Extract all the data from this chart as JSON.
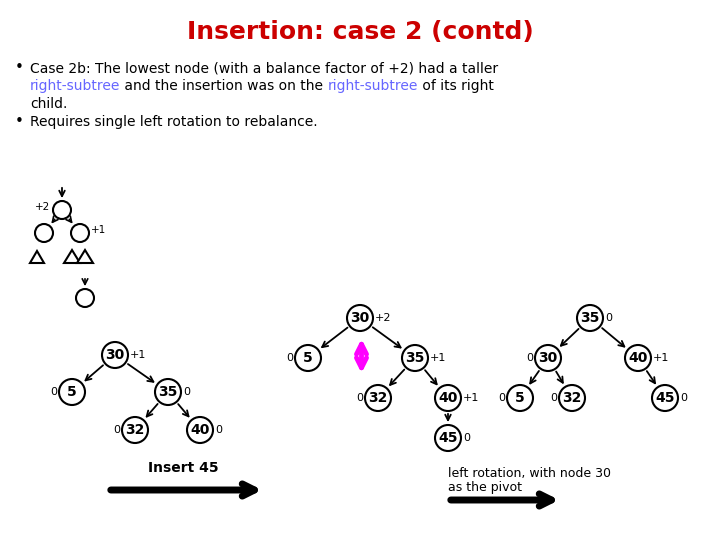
{
  "title": "Insertion: case 2 (contd)",
  "title_color": "#cc0000",
  "title_fontsize": 18,
  "bg_color": "#ffffff",
  "bullet1_line1": "Case 2b: The lowest node (with a balance factor of +2) had a taller",
  "bullet1_line2a": "right-subtree",
  "bullet1_line2b": " and the insertion was on the ",
  "bullet1_line2c": "right-subtree",
  "bullet1_line2d": " of its right",
  "bullet1_line3": "child.",
  "bullet2": "Requires single left rotation to rebalance.",
  "blue_color": "#6666ff",
  "arrow1_label": "Insert 45",
  "arrow2_label1": "left rotation, with node 30",
  "arrow2_label2": "as the pivot",
  "node_r": 13,
  "abstract_r": 9
}
